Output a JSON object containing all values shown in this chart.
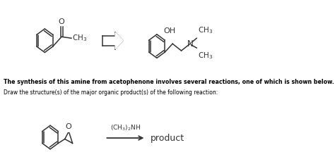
{
  "background_color": "#ffffff",
  "bold_text": "The synthesis of this amine from acetophenone involves several reactions, one of which is shown below.",
  "normal_text": "Draw the structure(s) of the major organic product(s) of the following reaction:",
  "reagent_text": "(CH$_3$)$_2$NH",
  "product_text": "product",
  "fig_width": 4.74,
  "fig_height": 2.33,
  "dpi": 100
}
